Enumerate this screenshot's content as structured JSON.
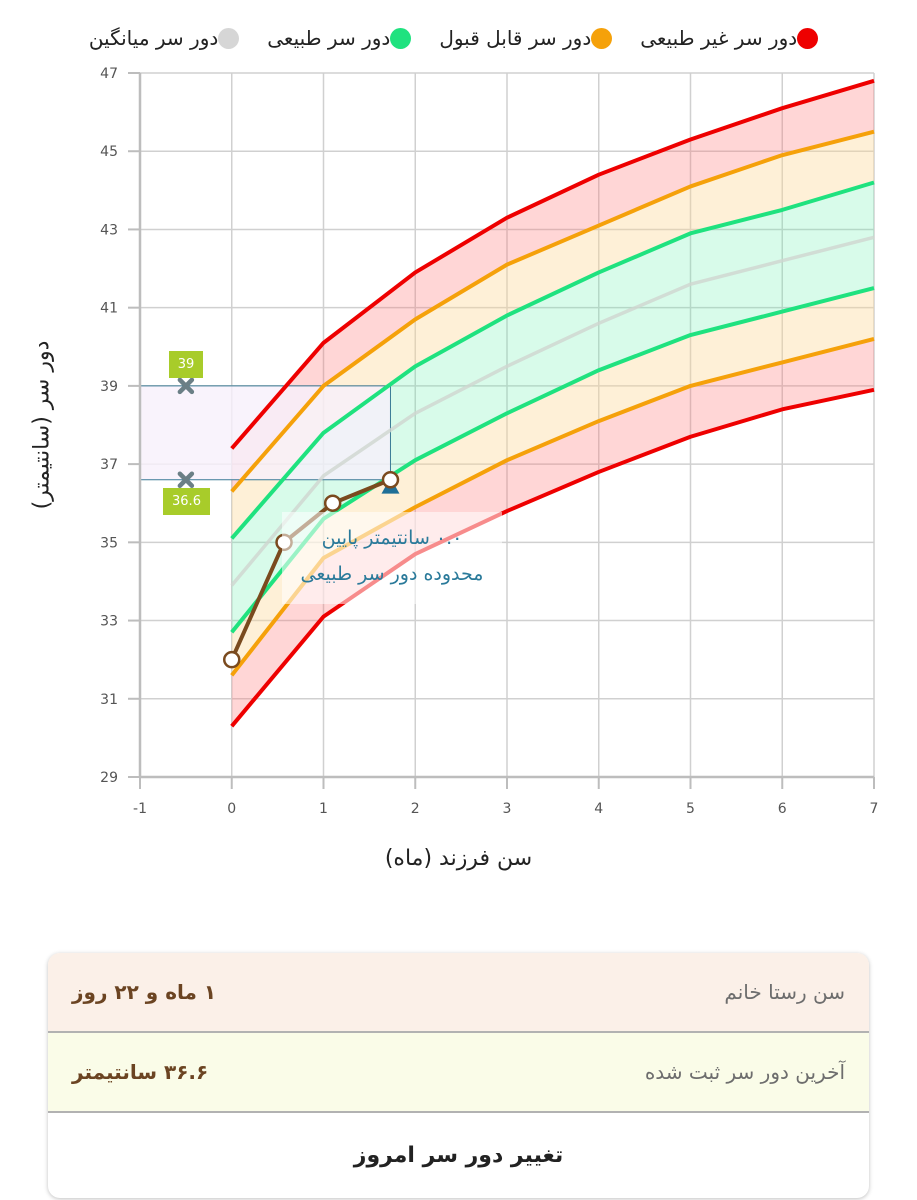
{
  "legend": [
    {
      "label": "دور سر غیر طبیعی",
      "color": "#ee0000"
    },
    {
      "label": "دور سر قابل قبول",
      "color": "#f5a10a"
    },
    {
      "label": "دور سر طبیعی",
      "color": "#1fe27f"
    },
    {
      "label": "دور سر میانگین",
      "color": "#d6d6d6"
    }
  ],
  "chart_data": {
    "type": "line",
    "title": "",
    "xlabel": "سن فرزند (ماه)",
    "ylabel": "دور سر (سانتیمتر)",
    "xlim": [
      -1,
      7
    ],
    "ylim": [
      29,
      47
    ],
    "x_ticks": [
      -1,
      0,
      1,
      2,
      3,
      4,
      5,
      6,
      7
    ],
    "y_ticks": [
      29,
      31,
      33,
      35,
      37,
      39,
      41,
      43,
      45,
      47
    ],
    "grid": true,
    "x": [
      0,
      1,
      2,
      3,
      4,
      5,
      6,
      7
    ],
    "series": [
      {
        "name": "abnormal_upper",
        "color": "#ee0000",
        "values": [
          37.4,
          40.1,
          41.9,
          43.3,
          44.4,
          45.3,
          46.1,
          46.8
        ]
      },
      {
        "name": "acceptable_upper",
        "color": "#f5a10a",
        "values": [
          36.3,
          39.0,
          40.7,
          42.1,
          43.1,
          44.1,
          44.9,
          45.5
        ]
      },
      {
        "name": "normal_upper",
        "color": "#1fe27f",
        "values": [
          35.1,
          37.8,
          39.5,
          40.8,
          41.9,
          42.9,
          43.5,
          44.2
        ]
      },
      {
        "name": "average",
        "color": "#cfd6cf",
        "values": [
          33.9,
          36.7,
          38.3,
          39.5,
          40.6,
          41.6,
          42.2,
          42.8
        ]
      },
      {
        "name": "normal_lower",
        "color": "#1fe27f",
        "values": [
          32.7,
          35.6,
          37.1,
          38.3,
          39.4,
          40.3,
          40.9,
          41.5
        ]
      },
      {
        "name": "acceptable_lower",
        "color": "#f5a10a",
        "values": [
          31.6,
          34.6,
          35.9,
          37.1,
          38.1,
          39.0,
          39.6,
          40.2
        ]
      },
      {
        "name": "abnormal_lower",
        "color": "#ee0000",
        "values": [
          30.3,
          33.1,
          34.7,
          35.8,
          36.8,
          37.7,
          38.4,
          38.9
        ]
      }
    ],
    "measurements": {
      "name": "child_head_circumference",
      "color": "#7a4a1e",
      "points": [
        [
          0,
          32.0
        ],
        [
          0.57,
          35.0
        ],
        [
          1.1,
          36.0
        ],
        [
          1.73,
          36.6
        ]
      ]
    },
    "current_marker": {
      "x": 1.73,
      "y": 36.45,
      "shape": "triangle",
      "color": "#1f6f97"
    },
    "reference_range": {
      "low": 36.6,
      "high": 39,
      "x_end": 1.73,
      "line_color": "#3b7b96",
      "fill": "#f7f0fb"
    },
    "range_labels": [
      {
        "value": 39,
        "label": "39"
      },
      {
        "value": 36.6,
        "label": "36.6"
      }
    ],
    "annotation": {
      "line1": "۰.۰ سانتیمتر پایین",
      "line2": "محدوده دور سر طبیعی"
    }
  },
  "info_card": {
    "age_label": "سن رستا خانم",
    "age_value": "۱ ماه و ۲۲ روز",
    "hc_label": "آخرین دور سر ثبت شده",
    "hc_value": "۳۶.۶ سانتیمتر",
    "button_label": "تغییر دور سر امروز"
  }
}
